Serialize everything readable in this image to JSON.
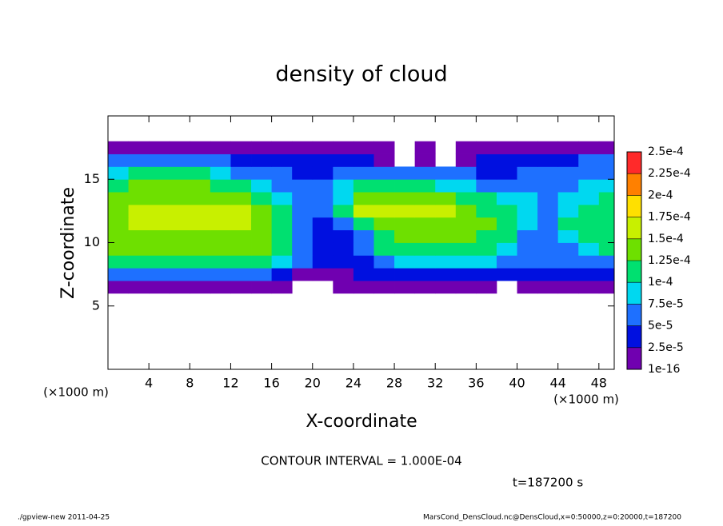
{
  "chart_data": {
    "type": "heatmap",
    "title": "density of cloud",
    "x_label": "X-coordinate",
    "y_label": "Z-coordinate",
    "x_unit": "(×1000 m)",
    "y_unit": "(×1000 m)",
    "contour_note": "CONTOUR INTERVAL = 1.000E-04",
    "time_note": "t=187200 s",
    "footer_left": "./gpview-new  2011-04-25",
    "footer_right": "MarsCond_DensCloud.nc@DensCloud,x=0:50000,z=0:20000,t=187200",
    "xlim": [
      0,
      49.5
    ],
    "ylim": [
      0,
      20
    ],
    "xticks": [
      4,
      8,
      12,
      16,
      20,
      24,
      28,
      32,
      36,
      40,
      44,
      48
    ],
    "yticks": [
      5,
      10,
      15
    ],
    "levels": [
      1e-16,
      {
        "value": 2.5e-05,
        "label": "2.5e-5"
      },
      {
        "value": 5e-05,
        "label": "5e-5"
      },
      {
        "value": 7.5e-05,
        "label": "7.5e-5"
      },
      {
        "value": 0.0001,
        "label": "1e-4"
      },
      {
        "value": 0.000125,
        "label": "1.25e-4"
      },
      {
        "value": 0.00015,
        "label": "1.5e-4"
      },
      {
        "value": 0.000175,
        "label": "1.75e-4"
      },
      {
        "value": 0.0002,
        "label": "2e-4"
      },
      {
        "value": 0.000225,
        "label": "2.25e-4"
      },
      {
        "value": 0.00025,
        "label": "2.5e-4"
      }
    ],
    "colors": [
      "#7000b0",
      "#0010e0",
      "#1e70ff",
      "#00d8f0",
      "#00e070",
      "#6ee000",
      "#c8f000",
      "#ffe000",
      "#ff8000",
      "#ff2a2a"
    ],
    "x": [
      1,
      3,
      5,
      7,
      9,
      11,
      13,
      15,
      17,
      19,
      21,
      23,
      25,
      27,
      29,
      31,
      33,
      35,
      37,
      39,
      41,
      43,
      45,
      47,
      49
    ],
    "z": [
      6.5,
      7.5,
      8.5,
      9.5,
      10.5,
      11.5,
      12.5,
      13.5,
      14.5,
      15.5,
      16.5,
      17.5
    ],
    "values": [
      [
        1e-05,
        1e-05,
        1e-05,
        1e-05,
        1e-05,
        1e-05,
        1e-05,
        1e-05,
        1e-05,
        null,
        null,
        1e-05,
        1e-05,
        1e-05,
        1e-05,
        1e-05,
        1e-05,
        1e-05,
        1e-05,
        null,
        1e-05,
        1e-05,
        1e-05,
        1e-05,
        1e-05
      ],
      [
        6e-05,
        6e-05,
        6e-05,
        6e-05,
        6e-05,
        6e-05,
        6e-05,
        6e-05,
        4e-05,
        2e-05,
        2e-05,
        2e-05,
        3e-05,
        3e-05,
        4e-05,
        4e-05,
        4e-05,
        4e-05,
        4e-05,
        4e-05,
        4e-05,
        4e-05,
        4e-05,
        4e-05,
        4e-05
      ],
      [
        0.000105,
        0.000105,
        0.000105,
        0.000105,
        0.000105,
        0.000105,
        0.000105,
        0.000105,
        9e-05,
        5e-05,
        3e-05,
        3e-05,
        4e-05,
        6e-05,
        8e-05,
        8e-05,
        8e-05,
        8e-05,
        8e-05,
        6e-05,
        6e-05,
        6e-05,
        7e-05,
        7e-05,
        7e-05
      ],
      [
        0.000125,
        0.000125,
        0.000125,
        0.000125,
        0.000125,
        0.000125,
        0.000125,
        0.000125,
        0.00011,
        6e-05,
        3e-05,
        3e-05,
        5e-05,
        0.00011,
        0.00011,
        0.00011,
        0.00011,
        0.00011,
        0.00011,
        9e-05,
        7e-05,
        7e-05,
        7e-05,
        8e-05,
        0.000105
      ],
      [
        0.00013,
        0.00014,
        0.00014,
        0.00014,
        0.00014,
        0.00014,
        0.00014,
        0.00014,
        0.00012,
        7e-05,
        3e-05,
        4e-05,
        6e-05,
        0.00012,
        0.000135,
        0.000135,
        0.000135,
        0.000135,
        0.00012,
        0.0001,
        7e-05,
        7e-05,
        8e-05,
        0.00011,
        0.00012
      ],
      [
        0.000135,
        0.00015,
        0.00015,
        0.00015,
        0.00015,
        0.00015,
        0.00015,
        0.00014,
        0.000115,
        6e-05,
        4e-05,
        6e-05,
        0.0001,
        0.000145,
        0.000145,
        0.000145,
        0.000145,
        0.000145,
        0.00013,
        0.000105,
        8e-05,
        7e-05,
        0.0001,
        0.000115,
        0.00012
      ],
      [
        0.000135,
        0.000152,
        0.000152,
        0.000152,
        0.000152,
        0.000152,
        0.000152,
        0.000135,
        0.0001,
        6e-05,
        7e-05,
        0.00011,
        0.00015,
        0.00015,
        0.00015,
        0.00015,
        0.00015,
        0.00014,
        0.00012,
        0.0001,
        8e-05,
        7e-05,
        9e-05,
        0.00011,
        0.000115
      ],
      [
        0.00013,
        0.000145,
        0.000145,
        0.000145,
        0.000145,
        0.000145,
        0.000135,
        0.000115,
        8e-05,
        6e-05,
        5e-05,
        9e-05,
        0.00014,
        0.00014,
        0.00014,
        0.00014,
        0.00013,
        0.00012,
        0.00011,
        9e-05,
        8e-05,
        7e-05,
        8e-05,
        9e-05,
        0.0001
      ],
      [
        0.00011,
        0.00013,
        0.00013,
        0.00013,
        0.00013,
        0.00012,
        0.000105,
        8e-05,
        6e-05,
        5e-05,
        5e-05,
        8e-05,
        0.000115,
        0.000115,
        0.000115,
        0.000105,
        9e-05,
        8e-05,
        7e-05,
        6e-05,
        6e-05,
        6e-05,
        7e-05,
        8e-05,
        9e-05
      ],
      [
        9e-05,
        0.000105,
        0.000105,
        0.000105,
        0.000105,
        9e-05,
        7e-05,
        6e-05,
        5e-05,
        4e-05,
        4e-05,
        5e-05,
        6e-05,
        6e-05,
        6e-05,
        5e-05,
        5e-05,
        5e-05,
        4e-05,
        4e-05,
        5e-05,
        5e-05,
        6e-05,
        7e-05,
        7e-05
      ],
      [
        6e-05,
        6e-05,
        6e-05,
        6e-05,
        6e-05,
        5e-05,
        4e-05,
        3e-05,
        3e-05,
        3e-05,
        3e-05,
        4e-05,
        3e-05,
        2e-05,
        null,
        2e-05,
        null,
        2e-05,
        3e-05,
        3e-05,
        4e-05,
        4e-05,
        4e-05,
        5e-05,
        5e-05
      ],
      [
        1e-05,
        1e-05,
        1e-05,
        1e-05,
        1e-05,
        1e-05,
        1e-05,
        1e-05,
        1e-05,
        1e-05,
        1e-05,
        1e-05,
        1e-05,
        1e-05,
        null,
        1e-05,
        null,
        1e-05,
        1e-05,
        1e-05,
        1e-05,
        1e-05,
        1e-05,
        1e-05,
        1e-05
      ]
    ]
  }
}
